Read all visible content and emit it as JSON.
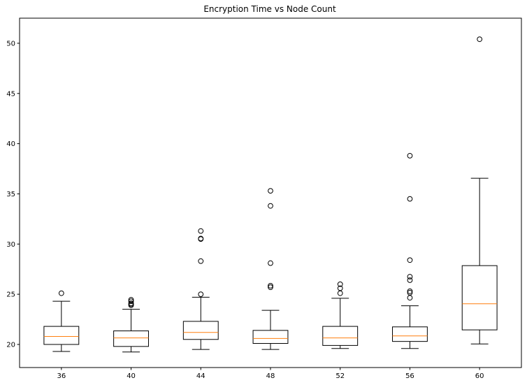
{
  "chart_data": {
    "type": "boxplot",
    "title": "Encryption Time vs Node Count",
    "xlabel": "",
    "ylabel": "",
    "categories": [
      "36",
      "40",
      "44",
      "48",
      "52",
      "56",
      "60"
    ],
    "ylim": [
      17.7,
      52.5
    ],
    "yticks": [
      20,
      25,
      30,
      35,
      40,
      45,
      50
    ],
    "grid": false,
    "colors": {
      "box": "#000000",
      "median": "#ff7f0e",
      "outlier": "#000000"
    },
    "boxes": [
      {
        "category": "36",
        "whislo": 19.3,
        "q1": 20.0,
        "med": 20.8,
        "q3": 21.8,
        "whishi": 24.3,
        "fliers": [
          25.1
        ]
      },
      {
        "category": "40",
        "whislo": 19.25,
        "q1": 19.8,
        "med": 20.65,
        "q3": 21.35,
        "whishi": 23.5,
        "fliers": [
          23.9,
          24.0,
          24.1,
          24.3,
          24.45
        ]
      },
      {
        "category": "44",
        "whislo": 19.5,
        "q1": 20.5,
        "med": 21.2,
        "q3": 22.3,
        "whishi": 24.7,
        "fliers": [
          25.0,
          28.3,
          30.5,
          30.55,
          31.3
        ]
      },
      {
        "category": "48",
        "whislo": 19.5,
        "q1": 20.1,
        "med": 20.6,
        "q3": 21.4,
        "whishi": 23.4,
        "fliers": [
          25.7,
          25.85,
          28.1,
          33.8,
          35.3
        ]
      },
      {
        "category": "52",
        "whislo": 19.6,
        "q1": 19.9,
        "med": 20.65,
        "q3": 21.8,
        "whishi": 24.6,
        "fliers": [
          25.1,
          25.6,
          26.0
        ]
      },
      {
        "category": "56",
        "whislo": 19.6,
        "q1": 20.3,
        "med": 20.85,
        "q3": 21.75,
        "whishi": 23.85,
        "fliers": [
          24.65,
          25.15,
          25.3,
          26.4,
          26.75,
          28.4,
          34.5,
          38.8
        ]
      },
      {
        "category": "60",
        "whislo": 20.05,
        "q1": 21.45,
        "med": 24.05,
        "q3": 27.85,
        "whishi": 36.55,
        "fliers": [
          50.4
        ]
      }
    ]
  }
}
